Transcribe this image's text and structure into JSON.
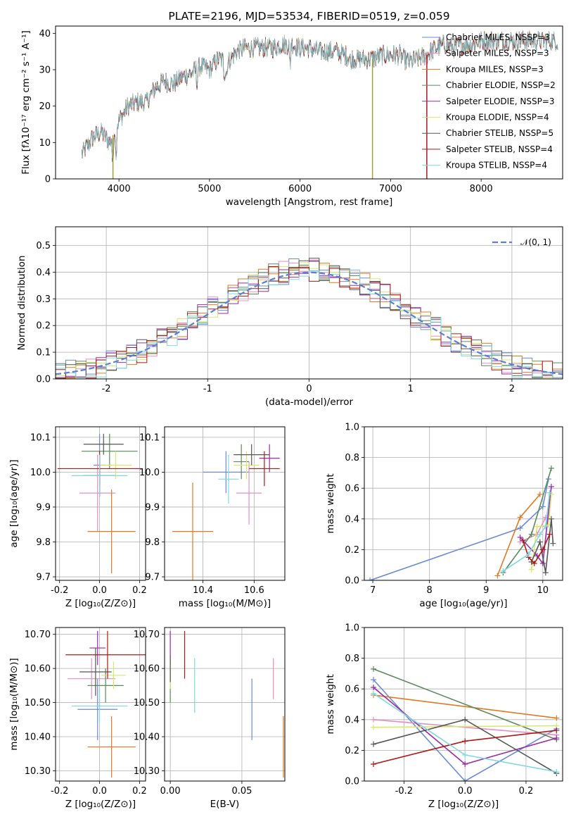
{
  "chart_data": [
    {
      "type": "line",
      "title": "PLATE=2196, MJD=53534, FIBERID=0519, z=0.059",
      "xlabel": "wavelength [Angstrom, rest frame]",
      "ylabel": "Flux [fλ10⁻¹⁷ erg cm⁻² s⁻¹ A⁻¹]",
      "xlim": [
        3300,
        8900
      ],
      "ylim": [
        0,
        42
      ],
      "xticks": [
        4000,
        5000,
        6000,
        7000,
        8000
      ],
      "yticks": [
        0,
        10,
        20,
        30,
        40
      ],
      "grid": false,
      "legend_position": "upper-right",
      "series": [
        {
          "name": "Chabrier MILES, N_SSP=3",
          "color": "#6b8bd6"
        },
        {
          "name": "Salpeter MILES, N_SSP=3",
          "color": "#e48fc0"
        },
        {
          "name": "Kroupa MILES, N_SSP=3",
          "color": "#e07a20"
        },
        {
          "name": "Chabrier ELODIE, N_SSP=2",
          "color": "#5b8a5b"
        },
        {
          "name": "Salpeter ELODIE, N_SSP=3",
          "color": "#9a2ba8"
        },
        {
          "name": "Kroupa ELODIE, N_SSP=4",
          "color": "#d8e86a"
        },
        {
          "name": "Chabrier STELIB, N_SSP=5",
          "color": "#555555"
        },
        {
          "name": "Salpeter STELIB, N_SSP=4",
          "color": "#b01818"
        },
        {
          "name": "Kroupa STELIB, N_SSP=4",
          "color": "#7fd9e0"
        }
      ],
      "continuum": {
        "x": [
          3600,
          3700,
          3800,
          3900,
          4000,
          4100,
          4200,
          4300,
          4400,
          4500,
          4600,
          4700,
          4800,
          4900,
          5000,
          5100,
          5200,
          5300,
          5400,
          5500,
          5600,
          5700,
          5800,
          5900,
          6000,
          6100,
          6200,
          6300,
          6400,
          6500,
          6600,
          6700,
          6800,
          6900,
          7000,
          7100,
          7200,
          7300,
          7400,
          7500,
          7600,
          7700,
          7800,
          7900,
          8000,
          8100,
          8200,
          8300,
          8400,
          8500,
          8600,
          8700,
          8800
        ],
        "y": [
          7,
          11,
          13,
          10,
          16,
          20,
          21,
          21,
          25,
          27,
          26,
          28,
          29,
          31,
          30,
          33,
          32,
          35,
          36,
          36,
          36,
          36,
          37,
          37,
          36,
          36,
          35,
          35,
          35,
          34,
          33,
          33,
          33,
          34,
          34,
          34,
          32,
          33,
          34,
          36,
          37,
          36,
          37,
          37,
          38,
          38,
          38,
          38,
          38,
          38,
          38,
          38,
          38
        ]
      }
    },
    {
      "type": "bar",
      "xlabel": "(data-model)/error",
      "ylabel": "Normed distribution",
      "xlim": [
        -2.5,
        2.5
      ],
      "ylim": [
        0,
        0.57
      ],
      "xticks": [
        -2,
        -1,
        0,
        1,
        2
      ],
      "yticks": [
        0.0,
        0.1,
        0.2,
        0.3,
        0.4,
        0.5
      ],
      "grid": true,
      "legend_position": "upper-right",
      "reference": {
        "name": "𝒩(0, 1)",
        "color": "#5b7fd6",
        "style": "dashed"
      },
      "bin_width": 0.1,
      "x_start": -2.5,
      "series_colors": [
        "#6b8bd6",
        "#e48fc0",
        "#e07a20",
        "#5b8a5b",
        "#9a2ba8",
        "#d8e86a",
        "#555555",
        "#b01818",
        "#7fd9e0"
      ]
    },
    {
      "type": "scatter",
      "xlabel": "Z [log₁₀(Z/Z⊙)]",
      "ylabel": "age  [log₁₀(age/yr)]",
      "xlim": [
        -0.22,
        0.23
      ],
      "ylim": [
        9.69,
        10.13
      ],
      "xticks": [
        -0.2,
        0.0,
        0.2
      ],
      "yticks": [
        9.7,
        9.8,
        9.9,
        10.0,
        10.1
      ],
      "grid": true,
      "points": [
        {
          "x": 0.0,
          "y": 10.02,
          "xerr": 0.03,
          "yerr": 0.09,
          "color": "#6b8bd6"
        },
        {
          "x": -0.01,
          "y": 9.94,
          "xerr": 0.09,
          "yerr": 0.11,
          "color": "#e48fc0"
        },
        {
          "x": 0.06,
          "y": 9.83,
          "xerr": 0.12,
          "yerr": 0.12,
          "color": "#e07a20"
        },
        {
          "x": 0.05,
          "y": 10.06,
          "xerr": 0.14,
          "yerr": 0.05,
          "color": "#5b8a5b"
        },
        {
          "x": 0.0,
          "y": 9.99,
          "xerr": 0.08,
          "yerr": 0.06,
          "color": "#9a2ba8"
        },
        {
          "x": 0.08,
          "y": 10.02,
          "xerr": 0.08,
          "yerr": 0.04,
          "color": "#d8e86a"
        },
        {
          "x": 0.02,
          "y": 10.08,
          "xerr": 0.1,
          "yerr": 0.03,
          "color": "#555555"
        },
        {
          "x": 0.0,
          "y": 10.01,
          "xerr": 0.21,
          "yerr": 0.05,
          "color": "#b01818"
        },
        {
          "x": 0.0,
          "y": 9.99,
          "xerr": 0.14,
          "yerr": 0.06,
          "color": "#7fd9e0"
        }
      ]
    },
    {
      "type": "scatter",
      "xlabel": "mass [log₁₀(M/M⊙)]",
      "ylabel": "",
      "xlim": [
        10.25,
        10.72
      ],
      "ylim": [
        9.69,
        10.13
      ],
      "xticks": [
        10.4,
        10.6
      ],
      "yticks": [
        9.7,
        9.8,
        9.9,
        10.0,
        10.1
      ],
      "grid": true,
      "points": [
        {
          "x": 10.49,
          "y": 10.0,
          "xerr": 0.09,
          "yerr": 0.06,
          "color": "#6b8bd6"
        },
        {
          "x": 10.58,
          "y": 9.94,
          "xerr": 0.05,
          "yerr": 0.09,
          "color": "#e48fc0"
        },
        {
          "x": 10.36,
          "y": 9.83,
          "xerr": 0.08,
          "yerr": 0.14,
          "color": "#e07a20"
        },
        {
          "x": 10.55,
          "y": 10.03,
          "xerr": 0.03,
          "yerr": 0.05,
          "color": "#5b8a5b"
        },
        {
          "x": 10.66,
          "y": 10.04,
          "xerr": 0.04,
          "yerr": 0.04,
          "color": "#9a2ba8"
        },
        {
          "x": 10.57,
          "y": 10.02,
          "xerr": 0.05,
          "yerr": 0.04,
          "color": "#d8e86a"
        },
        {
          "x": 10.59,
          "y": 10.05,
          "xerr": 0.07,
          "yerr": 0.03,
          "color": "#555555"
        },
        {
          "x": 10.64,
          "y": 10.01,
          "xerr": 0.06,
          "yerr": 0.05,
          "color": "#b01818"
        },
        {
          "x": 10.5,
          "y": 9.98,
          "xerr": 0.04,
          "yerr": 0.07,
          "color": "#7fd9e0"
        }
      ]
    },
    {
      "type": "line",
      "xlabel": "age  [log₁₀(age/yr)]",
      "ylabel": "mass weight",
      "xlim": [
        6.85,
        10.35
      ],
      "ylim": [
        0,
        1
      ],
      "xticks": [
        7,
        8,
        9,
        10
      ],
      "yticks": [
        0.0,
        0.2,
        0.4,
        0.6,
        0.8,
        1.0
      ],
      "grid": true,
      "series": [
        {
          "color": "#6b8bd6",
          "x": [
            6.95,
            9.6,
            10.0,
            10.1
          ],
          "y": [
            0.0,
            0.34,
            0.48,
            0.66
          ]
        },
        {
          "color": "#e48fc0",
          "x": [
            9.6,
            9.9,
            10.05
          ],
          "y": [
            0.25,
            0.3,
            0.41
          ]
        },
        {
          "color": "#e07a20",
          "x": [
            9.2,
            9.6,
            9.95
          ],
          "y": [
            0.03,
            0.41,
            0.56
          ]
        },
        {
          "color": "#5b8a5b",
          "x": [
            9.3,
            9.8,
            10.15
          ],
          "y": [
            0.05,
            0.3,
            0.73
          ]
        },
        {
          "color": "#9a2ba8",
          "x": [
            9.6,
            9.9,
            10.0,
            10.15
          ],
          "y": [
            0.28,
            0.16,
            0.11,
            0.61
          ]
        },
        {
          "color": "#d8e86a",
          "x": [
            9.8,
            9.9,
            10.1,
            10.15
          ],
          "y": [
            0.07,
            0.35,
            0.36,
            0.56
          ]
        },
        {
          "color": "#555555",
          "x": [
            9.8,
            9.95,
            10.05,
            10.15,
            10.18
          ],
          "y": [
            0.12,
            0.25,
            0.05,
            0.4,
            0.24
          ]
        },
        {
          "color": "#b01818",
          "x": [
            9.65,
            9.75,
            9.85,
            10.0,
            10.12
          ],
          "y": [
            0.26,
            0.15,
            0.11,
            0.2,
            0.3
          ]
        },
        {
          "color": "#7fd9e0",
          "x": [
            9.3,
            9.75,
            9.95,
            10.05,
            10.12
          ],
          "y": [
            0.06,
            0.17,
            0.3,
            0.35,
            0.57
          ]
        }
      ]
    },
    {
      "type": "scatter",
      "xlabel": "Z [log₁₀(Z/Z⊙)]",
      "ylabel": "mass [log₁₀(M/M⊙)]",
      "xlim": [
        -0.22,
        0.23
      ],
      "ylim": [
        10.27,
        10.72
      ],
      "xticks": [
        -0.2,
        0.0,
        0.2
      ],
      "yticks": [
        10.3,
        10.4,
        10.5,
        10.6,
        10.7
      ],
      "grid": true,
      "points": [
        {
          "x": -0.01,
          "y": 10.48,
          "xerr": 0.1,
          "yerr": 0.09,
          "color": "#6b8bd6"
        },
        {
          "x": -0.04,
          "y": 10.57,
          "xerr": 0.12,
          "yerr": 0.06,
          "color": "#e48fc0"
        },
        {
          "x": 0.06,
          "y": 10.37,
          "xerr": 0.12,
          "yerr": 0.09,
          "color": "#e07a20"
        },
        {
          "x": 0.03,
          "y": 10.55,
          "xerr": 0.09,
          "yerr": 0.05,
          "color": "#5b8a5b"
        },
        {
          "x": -0.01,
          "y": 10.66,
          "xerr": 0.04,
          "yerr": 0.05,
          "color": "#9a2ba8"
        },
        {
          "x": 0.07,
          "y": 10.58,
          "xerr": 0.06,
          "yerr": 0.04,
          "color": "#d8e86a"
        },
        {
          "x": -0.02,
          "y": 10.59,
          "xerr": 0.08,
          "yerr": 0.07,
          "color": "#555555"
        },
        {
          "x": 0.04,
          "y": 10.64,
          "xerr": 0.21,
          "yerr": 0.07,
          "color": "#b01818"
        },
        {
          "x": 0.0,
          "y": 10.49,
          "xerr": 0.14,
          "yerr": 0.05,
          "color": "#7fd9e0"
        }
      ]
    },
    {
      "type": "scatter",
      "xlabel": "E(B-V)",
      "ylabel": "",
      "xlim": [
        -0.004,
        0.08
      ],
      "ylim": [
        10.27,
        10.72
      ],
      "xticks": [
        0.0,
        0.05
      ],
      "yticks": [
        10.3,
        10.4,
        10.5,
        10.6,
        10.7
      ],
      "grid": true,
      "points": [
        {
          "x": 0.057,
          "y": 10.48,
          "yerr": 0.09,
          "color": "#6b8bd6"
        },
        {
          "x": 0.072,
          "y": 10.57,
          "yerr": 0.06,
          "color": "#e48fc0"
        },
        {
          "x": 0.079,
          "y": 10.37,
          "yerr": 0.09,
          "color": "#e07a20"
        },
        {
          "x": 0.0,
          "y": 10.55,
          "yerr": 0.05,
          "color": "#5b8a5b"
        },
        {
          "x": 0.0,
          "y": 10.66,
          "yerr": 0.05,
          "color": "#9a2ba8"
        },
        {
          "x": 0.0,
          "y": 10.59,
          "yerr": 0.05,
          "color": "#d8e86a"
        },
        {
          "x": 0.0,
          "y": 10.6,
          "yerr": 0.04,
          "color": "#555555"
        },
        {
          "x": 0.01,
          "y": 10.64,
          "yerr": 0.07,
          "color": "#b01818"
        },
        {
          "x": 0.017,
          "y": 10.55,
          "yerr": 0.08,
          "color": "#7fd9e0"
        }
      ]
    },
    {
      "type": "line",
      "xlabel": "Z [log₁₀(Z/Z⊙)]",
      "ylabel": "mass weight",
      "xlim": [
        -0.33,
        0.32
      ],
      "ylim": [
        0,
        1
      ],
      "xticks": [
        -0.2,
        0.0,
        0.2
      ],
      "yticks": [
        0.0,
        0.2,
        0.4,
        0.6,
        0.8,
        1.0
      ],
      "grid": true,
      "series": [
        {
          "color": "#6b8bd6",
          "x": [
            -0.3,
            0.0,
            0.3
          ],
          "y": [
            0.66,
            0.0,
            0.34
          ]
        },
        {
          "color": "#e48fc0",
          "x": [
            -0.3,
            0.3
          ],
          "y": [
            0.4,
            0.3
          ]
        },
        {
          "color": "#e07a20",
          "x": [
            -0.3,
            0.3
          ],
          "y": [
            0.56,
            0.41
          ]
        },
        {
          "color": "#5b8a5b",
          "x": [
            -0.3,
            0.3
          ],
          "y": [
            0.73,
            0.27
          ]
        },
        {
          "color": "#9a2ba8",
          "x": [
            -0.3,
            0.0,
            0.3
          ],
          "y": [
            0.61,
            0.11,
            0.28
          ]
        },
        {
          "color": "#d8e86a",
          "x": [
            -0.3,
            0.3
          ],
          "y": [
            0.35,
            0.36
          ]
        },
        {
          "color": "#555555",
          "x": [
            -0.3,
            0.0,
            0.3
          ],
          "y": [
            0.24,
            0.4,
            0.05
          ]
        },
        {
          "color": "#b01818",
          "x": [
            -0.3,
            0.0,
            0.3
          ],
          "y": [
            0.11,
            0.26,
            0.33
          ]
        },
        {
          "color": "#7fd9e0",
          "x": [
            -0.3,
            0.0,
            0.3
          ],
          "y": [
            0.57,
            0.17,
            0.06
          ]
        }
      ]
    }
  ]
}
